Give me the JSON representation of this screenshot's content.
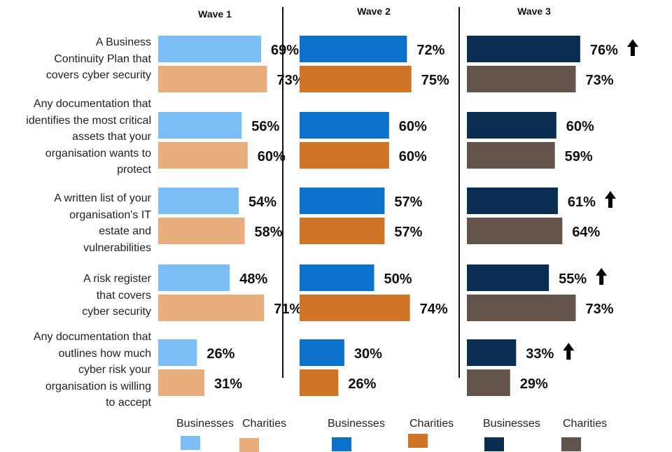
{
  "chart_data": {
    "type": "bar",
    "orientation": "horizontal",
    "categories": [
      "A Business Continuity Plan that covers cyber security",
      "Any documentation that identifies the most critical assets that your organisation wants to protect",
      "A written list of your organisation's IT estate and vulnerabilities",
      "A risk register that covers cyber security",
      "Any documentation that outlines how much cyber risk your organisation is willing to accept"
    ],
    "category_lines": [
      [
        "A Business",
        "Continuity Plan that",
        "covers cyber security"
      ],
      [
        "Any documentation that",
        "identifies the most critical",
        "assets that your",
        "organisation wants to",
        "protect"
      ],
      [
        "A written list of your",
        "organisation's IT",
        "estate and",
        "vulnerabilities"
      ],
      [
        "A risk register",
        "that covers",
        "cyber security"
      ],
      [
        "Any documentation that",
        "outlines how much",
        "cyber risk your",
        "organisation is willing",
        "to accept"
      ]
    ],
    "panels": [
      {
        "title": "Wave 1",
        "series": [
          {
            "name": "Businesses",
            "color": "#7bbdf5",
            "values": [
              69,
              56,
              54,
              48,
              26
            ],
            "up_arrow": [
              false,
              false,
              false,
              false,
              false
            ]
          },
          {
            "name": "Charities",
            "color": "#e7ad7d",
            "values": [
              73,
              60,
              58,
              71,
              31
            ],
            "up_arrow": [
              false,
              false,
              false,
              false,
              false
            ]
          }
        ]
      },
      {
        "title": "Wave 2",
        "series": [
          {
            "name": "Businesses",
            "color": "#0b72cc",
            "values": [
              72,
              60,
              57,
              50,
              30
            ],
            "up_arrow": [
              false,
              false,
              false,
              false,
              false
            ]
          },
          {
            "name": "Charities",
            "color": "#d07428",
            "values": [
              75,
              60,
              57,
              74,
              26
            ],
            "up_arrow": [
              false,
              false,
              false,
              false,
              false
            ]
          }
        ]
      },
      {
        "title": "Wave 3",
        "series": [
          {
            "name": "Businesses",
            "color": "#0a2d52",
            "values": [
              76,
              60,
              61,
              55,
              33
            ],
            "up_arrow": [
              true,
              false,
              true,
              true,
              true
            ]
          },
          {
            "name": "Charities",
            "color": "#62534b",
            "values": [
              73,
              59,
              64,
              73,
              29
            ],
            "up_arrow": [
              false,
              false,
              false,
              false,
              false
            ]
          }
        ]
      }
    ],
    "value_suffix": "%",
    "xlim": [
      0,
      100
    ],
    "grid": false,
    "legend_position": "bottom"
  }
}
